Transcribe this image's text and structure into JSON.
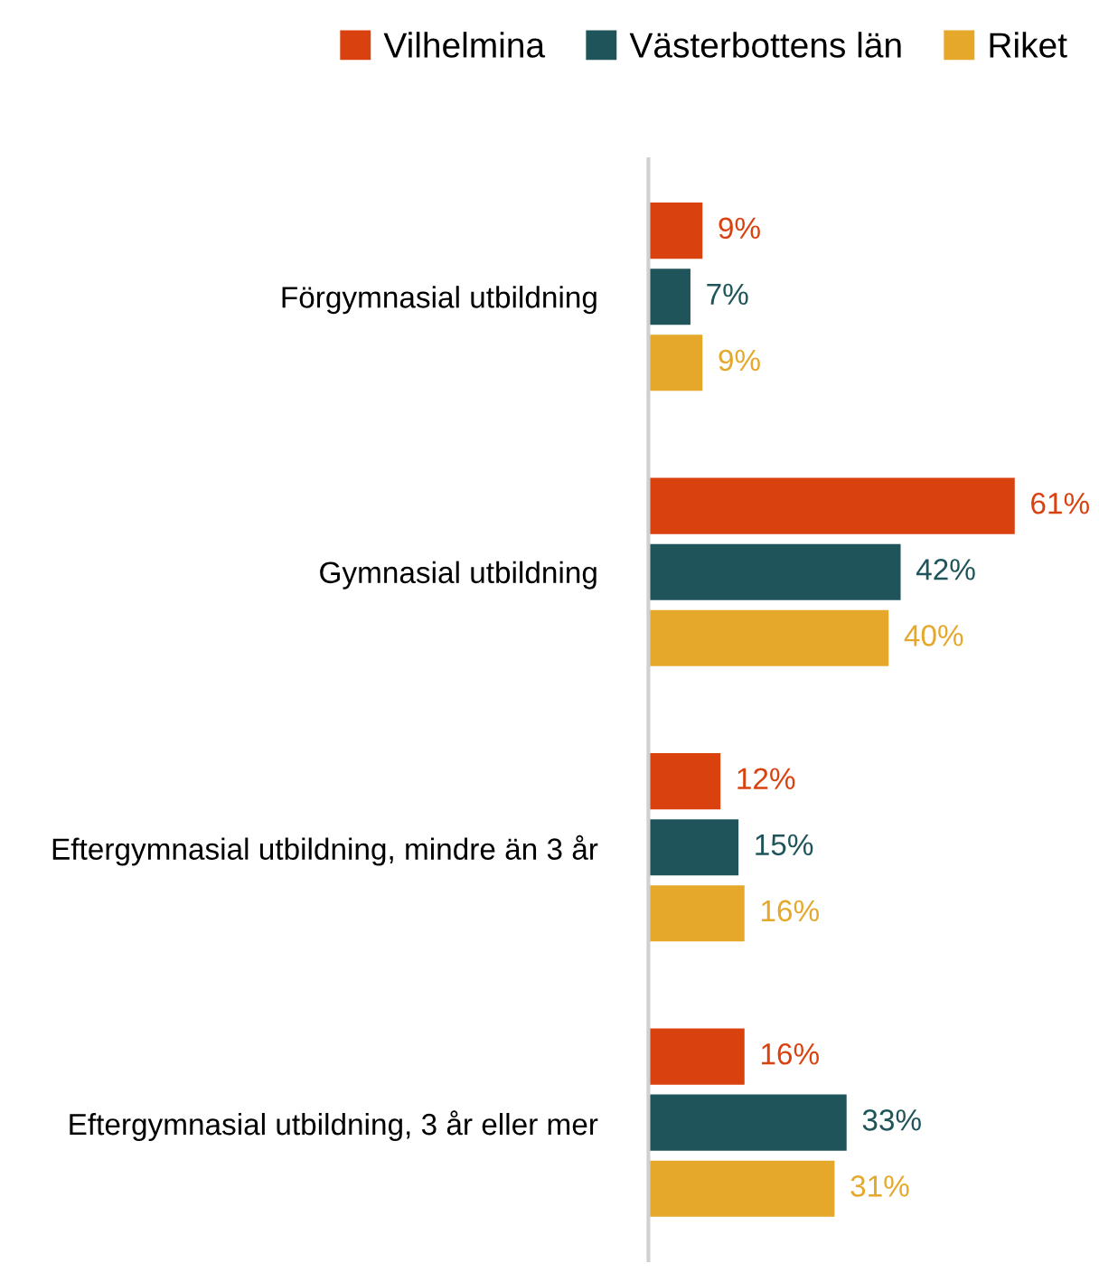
{
  "chart_data": {
    "type": "bar",
    "orientation": "horizontal",
    "legend": "top",
    "categories": [
      "Förgymnasial utbildning",
      "Gymnasial utbildning",
      "Eftergymnasial utbildning, mindre än 3 år",
      "Eftergymnasial utbildning, 3 år eller mer"
    ],
    "series": [
      {
        "name": "Vilhelmina",
        "color": "#d9410f",
        "values": [
          9,
          61,
          12,
          16
        ],
        "value_labels": [
          "9%",
          "61%",
          "12%",
          "16%"
        ]
      },
      {
        "name": "Västerbottens län",
        "color": "#1f555a",
        "values": [
          7,
          42,
          15,
          33
        ],
        "value_labels": [
          "7%",
          "42%",
          "15%",
          "33%"
        ]
      },
      {
        "name": "Riket",
        "color": "#e5a82a",
        "values": [
          9,
          40,
          16,
          31
        ],
        "value_labels": [
          "9%",
          "40%",
          "16%",
          "31%"
        ]
      }
    ]
  }
}
